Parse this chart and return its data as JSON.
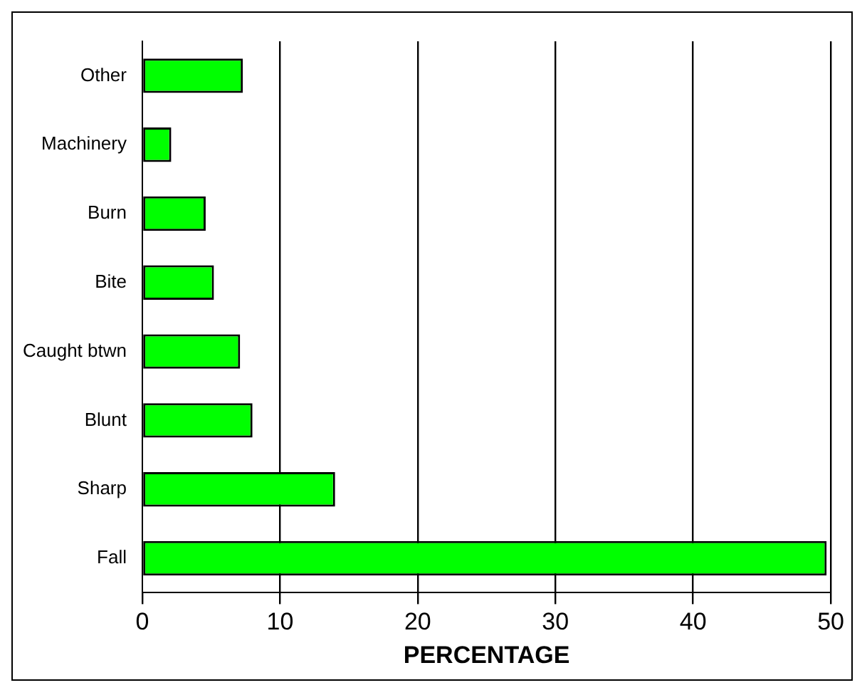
{
  "chart_data": {
    "type": "bar",
    "orientation": "horizontal",
    "xlabel": "PERCENTAGE",
    "categories": [
      "Other",
      "Machinery",
      "Burn",
      "Bite",
      "Caught btwn",
      "Blunt",
      "Sharp",
      "Fall"
    ],
    "values": [
      7.3,
      2.1,
      4.6,
      5.2,
      7.1,
      8.0,
      14.0,
      49.7
    ],
    "color": "#00ff00",
    "xlim": [
      0,
      50
    ],
    "xticks": [
      0,
      10,
      20,
      30,
      40,
      50
    ],
    "grid": "x",
    "legend": false
  }
}
